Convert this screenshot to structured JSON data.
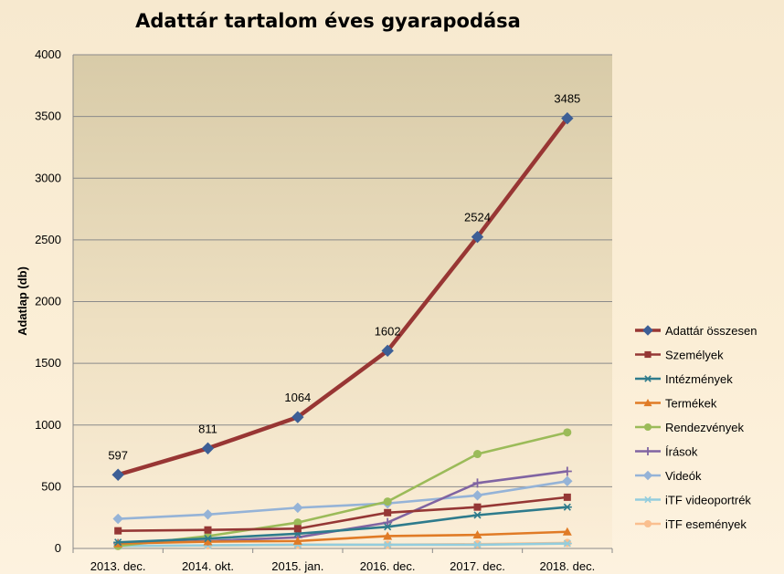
{
  "chart_data": {
    "type": "line",
    "title": "Adattár tartalom éves gyarapodása",
    "ylabel": "Adatlap (db)",
    "xlabel": "",
    "categories": [
      "2013. dec.",
      "2014. okt.",
      "2015. jan.",
      "2016. dec.",
      "2017. dec.",
      "2018. dec."
    ],
    "ylim": [
      0,
      4000
    ],
    "yticks": [
      0,
      500,
      1000,
      1500,
      2000,
      2500,
      3000,
      3500,
      4000
    ],
    "grid": true,
    "legend": "right",
    "series": [
      {
        "name": "Adattár összesen",
        "values": [
          597,
          811,
          1064,
          1602,
          2524,
          3485
        ],
        "color": "#983634",
        "marker": "diamond",
        "marker_color": "#3d5f96",
        "labels": [
          "597",
          "811",
          "1064",
          "1602",
          "2524",
          "3485"
        ]
      },
      {
        "name": "Személyek",
        "values": [
          143,
          150,
          160,
          290,
          335,
          415
        ],
        "color": "#953735",
        "marker": "square",
        "marker_color": "#953735"
      },
      {
        "name": "Intézmények",
        "values": [
          50,
          80,
          120,
          175,
          270,
          335
        ],
        "color": "#2e7b8c",
        "marker": "star",
        "marker_color": "#2e7b8c"
      },
      {
        "name": "Termékek",
        "values": [
          40,
          55,
          60,
          100,
          110,
          135
        ],
        "color": "#e07b26",
        "marker": "triangle",
        "marker_color": "#e07b26"
      },
      {
        "name": "Rendezvények",
        "values": [
          20,
          100,
          210,
          380,
          765,
          940
        ],
        "color": "#9bbb59",
        "marker": "circle",
        "marker_color": "#9bbb59"
      },
      {
        "name": "Írások",
        "values": [
          40,
          60,
          90,
          210,
          530,
          625
        ],
        "color": "#8064a2",
        "marker": "plus",
        "marker_color": "#8064a2"
      },
      {
        "name": "Videók",
        "values": [
          240,
          275,
          330,
          365,
          430,
          545
        ],
        "color": "#95b3d7",
        "marker": "diamond",
        "marker_color": "#95b3d7"
      },
      {
        "name": "iTF videoportrék",
        "values": [
          20,
          25,
          30,
          30,
          30,
          40
        ],
        "color": "#93cddd",
        "marker": "star",
        "marker_color": "#93cddd"
      },
      {
        "name": "iTF események",
        "values": [
          20,
          25,
          30,
          30,
          35,
          45
        ],
        "color": "#fabf8f",
        "marker": "circle",
        "marker_color": "#fabf8f"
      }
    ]
  }
}
